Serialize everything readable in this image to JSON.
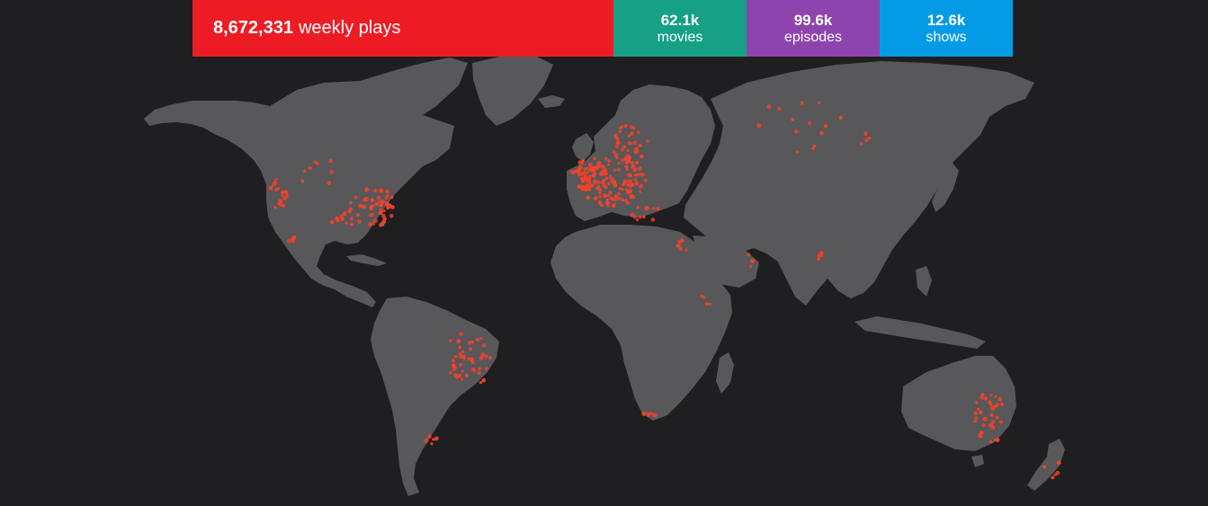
{
  "stats": {
    "plays_value": "8,672,331",
    "plays_label": "weekly plays",
    "movies_value": "62.1k",
    "movies_label": "movies",
    "episodes_value": "99.6k",
    "episodes_label": "episodes",
    "shows_value": "12.6k",
    "shows_label": "shows"
  },
  "colors": {
    "background": "#1f1e20",
    "land": "#58575a",
    "plays": "#ed1c24",
    "movies": "#16a086",
    "episodes": "#8e44ad",
    "shows": "#039be5",
    "play_dot": "#f0432a"
  },
  "map": {
    "type": "world-activity-map",
    "marker": "play-location-dot"
  }
}
